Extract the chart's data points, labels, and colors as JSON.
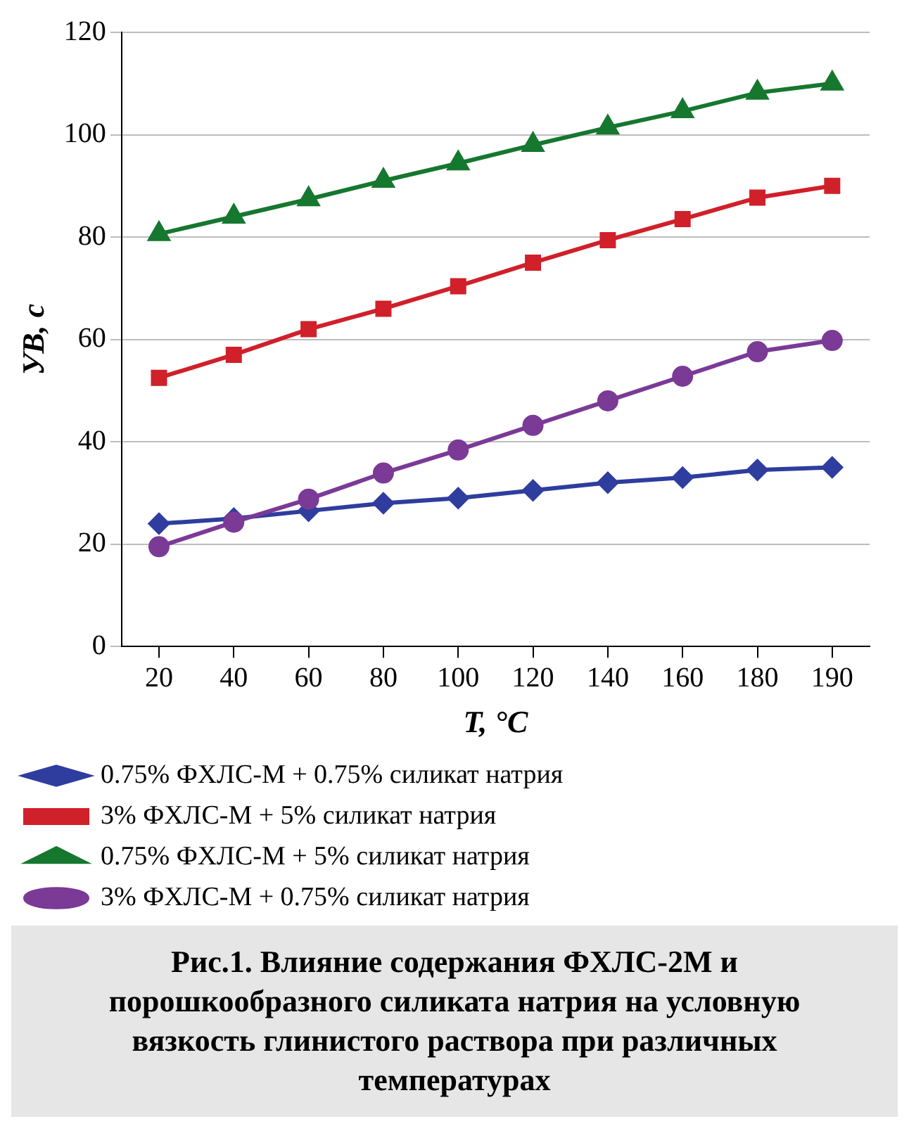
{
  "chart_data": {
    "type": "line",
    "xlabel": "T, °C",
    "ylabel": "УВ, с",
    "categories": [
      "20",
      "40",
      "60",
      "80",
      "100",
      "120",
      "140",
      "160",
      "180",
      "190"
    ],
    "series": [
      {
        "name": "0.75% ФХЛС-М + 0.75% силикат натрия",
        "color": "#2e3d9e",
        "marker": "diamond",
        "values": [
          24,
          25,
          26.5,
          28,
          29,
          30.5,
          32,
          33,
          34.5,
          35
        ]
      },
      {
        "name": "3% ФХЛС-М + 5% силикат натрия",
        "color": "#d0202a",
        "marker": "square",
        "values": [
          52.5,
          57,
          62,
          66,
          70.4,
          75,
          79.4,
          83.5,
          87.7,
          90
        ]
      },
      {
        "name": "0.75% ФХЛС-М + 5% силикат натрия",
        "color": "#16772f",
        "marker": "triangle",
        "values": [
          80.6,
          84,
          87.4,
          91,
          94.4,
          98,
          101.4,
          104.6,
          108.2,
          110
        ]
      },
      {
        "name": "3% ФХЛС-М + 0.75% силикат натрия",
        "color": "#7a3a96",
        "marker": "circle",
        "values": [
          19.5,
          24.3,
          28.8,
          33.9,
          38.4,
          43.2,
          48,
          52.8,
          57.6,
          59.8
        ]
      }
    ],
    "ylim": [
      0,
      120
    ],
    "yticks": [
      0,
      20,
      40,
      60,
      80,
      100,
      120
    ],
    "grid": "y",
    "legend": "bottom",
    "line_style": "solid",
    "annotations": [
      "Рис.1. Влияние содержания ФХЛС-2М и порошкообразного силиката натрия на условную вязкость глинистого раствора при различных температурах"
    ]
  }
}
